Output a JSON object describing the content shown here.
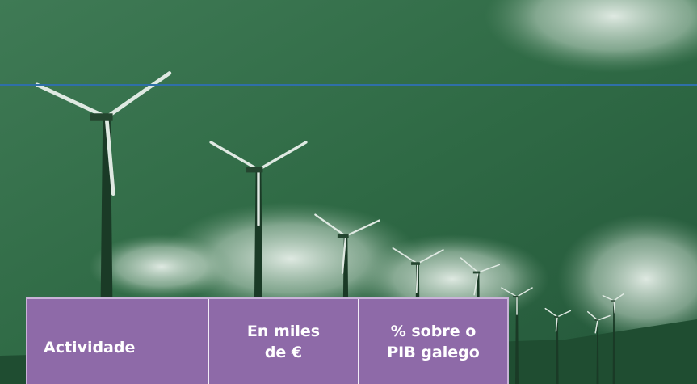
{
  "table": {
    "header": [
      "Actividade",
      "En miles de €",
      "% sobre o PIB galego"
    ]
  }
}
